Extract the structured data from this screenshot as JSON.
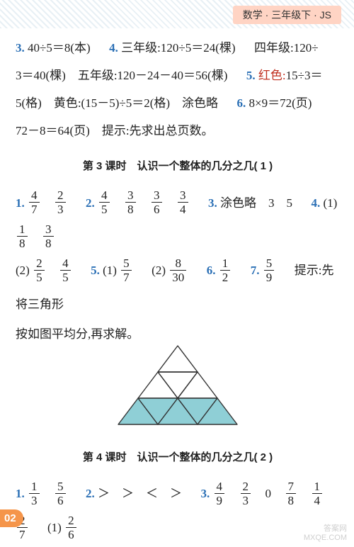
{
  "header": {
    "label": "数学 · 三年级下 · JS"
  },
  "pageNumber": "02",
  "watermark": {
    "line1": "答案网",
    "line2": "MXQE.COM"
  },
  "top": {
    "p3": {
      "num": "3.",
      "text": "40÷5＝8(本)"
    },
    "p4": {
      "num": "4.",
      "t1": "三年级:120÷5＝24(棵)",
      "t2": "四年级:120÷"
    },
    "l2": "3＝40(棵)　五年级:120－24－40＝56(棵)",
    "p5": {
      "num": "5.",
      "red": "红色:",
      "t": "15÷3＝"
    },
    "l3a": "5(格)　黄色:(15－5)÷5＝2(格)　涂色略",
    "p6": {
      "num": "6.",
      "t": "8×9＝72(页)"
    },
    "l4": "72－8＝64(页)　提示:先求出总页数。"
  },
  "sec3": {
    "title": "第 3 课时　认识一个整体的几分之几( 1 )",
    "q1": {
      "num": "1.",
      "f1n": "4",
      "f1d": "7",
      "f2n": "2",
      "f2d": "3"
    },
    "q2": {
      "num": "2.",
      "f1n": "4",
      "f1d": "5",
      "f2n": "3",
      "f2d": "8",
      "f3n": "3",
      "f3d": "6",
      "f4n": "3",
      "f4d": "4"
    },
    "q3": {
      "num": "3.",
      "t": "涂色略　3　5"
    },
    "q4": {
      "num": "4.",
      "sub": "(1)",
      "f1n": "1",
      "f1d": "8",
      "f2n": "3",
      "f2d": "8"
    },
    "q4b": {
      "sub": "(2)",
      "f1n": "2",
      "f1d": "5",
      "f2n": "4",
      "f2d": "5"
    },
    "q5": {
      "num": "5.",
      "sub1": "(1)",
      "f1n": "5",
      "f1d": "7",
      "sub2": "(2)",
      "f2n": "8",
      "f2d": "30"
    },
    "q6": {
      "num": "6.",
      "f1n": "1",
      "f1d": "2"
    },
    "q7": {
      "num": "7.",
      "f1n": "5",
      "f1d": "9",
      "tip": "提示:先将三角形"
    },
    "tipline": "按如图平均分,再求解。"
  },
  "triangle": {
    "width": 180,
    "height": 115,
    "stroke": "#333333",
    "fill": "#8fcfd6",
    "strokeWidth": 1.4
  },
  "sec4": {
    "title": "第 4 课时　认识一个整体的几分之几( 2 )",
    "q1": {
      "num": "1.",
      "f1n": "1",
      "f1d": "3",
      "f2n": "5",
      "f2d": "6"
    },
    "q2": {
      "num": "2.",
      "ops": "＞　＞　＜　＞"
    },
    "q3": {
      "num": "3.",
      "f1n": "4",
      "f1d": "9",
      "f2n": "2",
      "f2d": "3",
      "zero": "0",
      "f3n": "7",
      "f3d": "8",
      "f4n": "1",
      "f4d": "4",
      "f5n": "2",
      "f5d": "7",
      "sub": "(1)",
      "f6n": "2",
      "f6d": "6"
    }
  }
}
